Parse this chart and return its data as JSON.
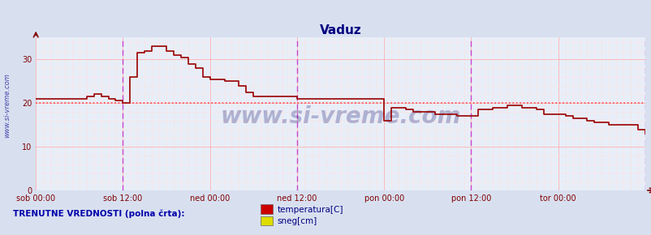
{
  "title": "Vaduz",
  "title_color": "#000080",
  "bg_color": "#d8e0f0",
  "plot_bg_color": "#e8eef8",
  "grid_color": "#ffb0b0",
  "grid_minor_color": "#ffe0e0",
  "ylim": [
    0,
    35
  ],
  "yticks": [
    0,
    10,
    20,
    30
  ],
  "tick_color": "#800000",
  "watermark": "www.si-vreme.com",
  "watermark_color": "#000066",
  "watermark_alpha": 0.25,
  "hline_value": 20,
  "hline_color": "#ff4444",
  "hline2_value": 0,
  "hline2_color": "#8888ff",
  "arrow_color": "#800000",
  "xticklabels": [
    "sob 00:00",
    "sob 12:00",
    "ned 00:00",
    "ned 12:00",
    "pon 00:00",
    "pon 12:00",
    "tor 00:00",
    ""
  ],
  "xtick_positions": [
    0,
    48,
    96,
    144,
    192,
    240,
    288,
    336
  ],
  "vline_positions": [
    48,
    144,
    240
  ],
  "vline_color": "#cc44cc",
  "sidebar_text": "www.si-vreme.com",
  "sidebar_color": "#4444aa",
  "legend_text1": "temperatura[C]",
  "legend_text2": "sneg[cm]",
  "legend_color1": "#cc0000",
  "legend_color2": "#dddd00",
  "footer_text": "TRENUTNE VREDNOSTI (polna črta):",
  "footer_color": "#0000aa",
  "temp_color": "#990000",
  "temp_x": [
    0,
    4,
    8,
    12,
    16,
    20,
    24,
    28,
    32,
    36,
    40,
    44,
    48,
    52,
    56,
    60,
    64,
    68,
    72,
    76,
    80,
    84,
    88,
    92,
    96,
    100,
    104,
    108,
    112,
    116,
    120,
    124,
    128,
    132,
    136,
    140,
    144,
    148,
    152,
    156,
    160,
    164,
    168,
    172,
    176,
    180,
    184,
    188,
    192,
    196,
    200,
    204,
    208,
    212,
    216,
    220,
    224,
    228,
    232,
    236,
    240,
    244,
    248,
    252,
    256,
    260,
    264,
    268,
    272,
    276,
    280,
    284,
    288,
    292,
    296,
    300,
    304,
    308,
    312,
    316,
    320,
    324,
    328,
    332,
    336
  ],
  "temp_y": [
    21.0,
    21.0,
    21.0,
    21.0,
    21.0,
    21.0,
    21.0,
    21.5,
    22.0,
    21.5,
    21.0,
    20.5,
    20.0,
    26.0,
    31.5,
    32.0,
    33.0,
    33.0,
    32.0,
    31.0,
    30.5,
    29.0,
    28.0,
    26.0,
    25.5,
    25.5,
    25.0,
    25.0,
    24.0,
    22.5,
    21.5,
    21.5,
    21.5,
    21.5,
    21.5,
    21.5,
    21.0,
    21.0,
    21.0,
    21.0,
    21.0,
    21.0,
    21.0,
    21.0,
    21.0,
    21.0,
    21.0,
    21.0,
    16.0,
    19.0,
    19.0,
    18.5,
    18.0,
    18.0,
    18.0,
    17.5,
    17.5,
    17.5,
    17.0,
    17.0,
    17.0,
    18.5,
    18.5,
    19.0,
    19.0,
    19.5,
    19.5,
    19.0,
    19.0,
    18.5,
    17.5,
    17.5,
    17.5,
    17.0,
    16.5,
    16.5,
    16.0,
    15.5,
    15.5,
    15.0,
    15.0,
    15.0,
    15.0,
    14.0,
    13.0
  ]
}
